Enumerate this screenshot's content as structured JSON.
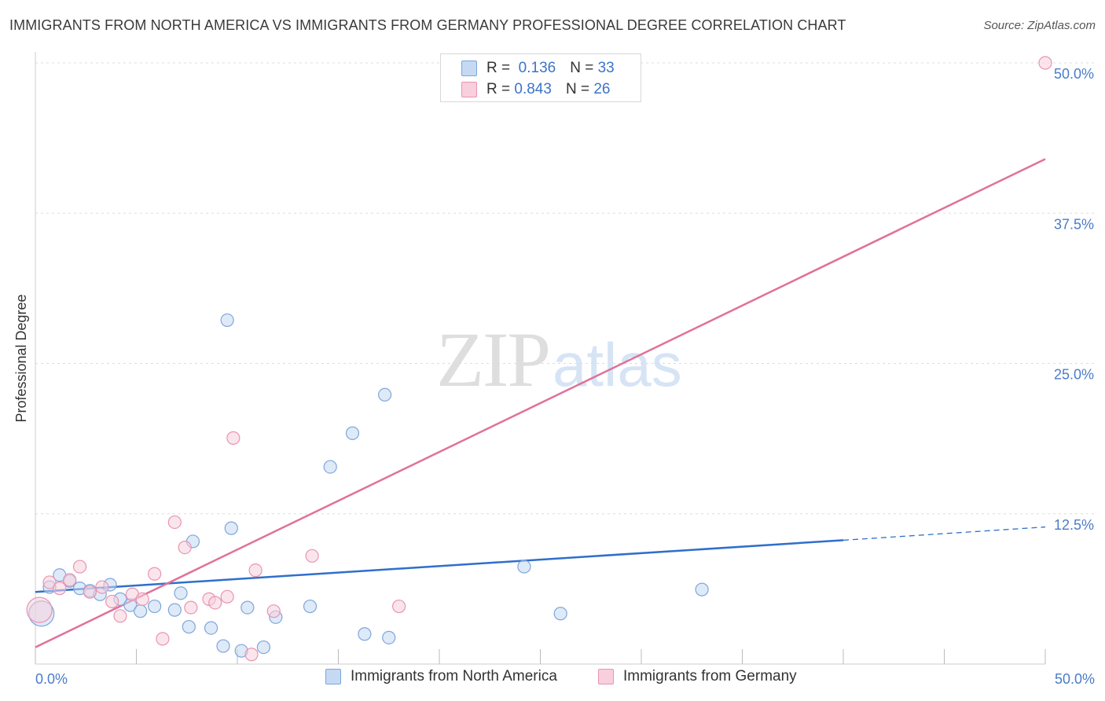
{
  "header": {
    "title": "IMMIGRANTS FROM NORTH AMERICA VS IMMIGRANTS FROM GERMANY PROFESSIONAL DEGREE CORRELATION CHART",
    "source": "Source: ZipAtlas.com"
  },
  "watermark": {
    "zip": "ZIP",
    "atlas": "atlas"
  },
  "legend": {
    "north_america": {
      "r_label": "R =",
      "r_value": "0.136",
      "n_label": "N =",
      "n_value": "33"
    },
    "germany": {
      "r_label": "R =",
      "r_value": "0.843",
      "n_label": "N =",
      "n_value": "26"
    }
  },
  "colors": {
    "north_america_fill": "#c5d9f3",
    "north_america_stroke": "#7ea6dc",
    "north_america_line": "#2f6fcc",
    "germany_fill": "#f8cfdc",
    "germany_stroke": "#e994b0",
    "germany_line": "#e0719a",
    "grid": "#dddddd",
    "tick_text": "#4a7cc9"
  },
  "chart_data": {
    "type": "scatter",
    "title": "IMMIGRANTS FROM NORTH AMERICA VS IMMIGRANTS FROM GERMANY PROFESSIONAL DEGREE CORRELATION CHART",
    "xlabel": "",
    "ylabel": "Professional Degree",
    "xlim": [
      0,
      50
    ],
    "ylim": [
      0,
      50
    ],
    "x_tick_labels": [
      "0.0%",
      "50.0%"
    ],
    "y_ticks": [
      {
        "value": 12.5,
        "label": "12.5%"
      },
      {
        "value": 25.0,
        "label": "25.0%"
      },
      {
        "value": 37.5,
        "label": "37.5%"
      },
      {
        "value": 50.0,
        "label": "50.0%"
      }
    ],
    "legend_position": "bottom",
    "series": [
      {
        "name": "Immigrants from North America",
        "points": [
          [
            0.3,
            4.2
          ],
          [
            0.7,
            6.4
          ],
          [
            1.2,
            7.4
          ],
          [
            1.7,
            6.9
          ],
          [
            2.2,
            6.3
          ],
          [
            2.7,
            6.1
          ],
          [
            3.2,
            5.8
          ],
          [
            3.7,
            6.6
          ],
          [
            4.2,
            5.4
          ],
          [
            4.7,
            4.9
          ],
          [
            5.2,
            4.4
          ],
          [
            5.9,
            4.8
          ],
          [
            6.9,
            4.5
          ],
          [
            7.2,
            5.9
          ],
          [
            7.6,
            3.1
          ],
          [
            7.8,
            10.2
          ],
          [
            8.7,
            3.0
          ],
          [
            9.3,
            1.5
          ],
          [
            9.5,
            28.6
          ],
          [
            9.7,
            11.3
          ],
          [
            10.2,
            1.1
          ],
          [
            10.5,
            4.7
          ],
          [
            11.3,
            1.4
          ],
          [
            11.9,
            3.9
          ],
          [
            13.6,
            4.8
          ],
          [
            14.6,
            16.4
          ],
          [
            15.7,
            19.2
          ],
          [
            16.3,
            2.5
          ],
          [
            17.3,
            22.4
          ],
          [
            17.5,
            2.2
          ],
          [
            24.2,
            8.1
          ],
          [
            26.0,
            4.2
          ],
          [
            33.0,
            6.2
          ]
        ],
        "trend": {
          "x0": 0,
          "y0": 6.0,
          "x1": 40,
          "y1": 10.3,
          "dash_to_x": 50,
          "dash_to_y": 11.4
        }
      },
      {
        "name": "Immigrants from Germany",
        "points": [
          [
            0.2,
            4.5
          ],
          [
            0.7,
            6.8
          ],
          [
            1.2,
            6.3
          ],
          [
            1.7,
            7.0
          ],
          [
            2.2,
            8.1
          ],
          [
            2.7,
            6.0
          ],
          [
            3.3,
            6.4
          ],
          [
            3.8,
            5.2
          ],
          [
            4.2,
            4.0
          ],
          [
            4.8,
            5.8
          ],
          [
            5.3,
            5.4
          ],
          [
            5.9,
            7.5
          ],
          [
            6.3,
            2.1
          ],
          [
            6.9,
            11.8
          ],
          [
            7.4,
            9.7
          ],
          [
            7.7,
            4.7
          ],
          [
            8.6,
            5.4
          ],
          [
            8.9,
            5.1
          ],
          [
            9.5,
            5.6
          ],
          [
            9.8,
            18.8
          ],
          [
            10.7,
            0.8
          ],
          [
            10.9,
            7.8
          ],
          [
            11.8,
            4.4
          ],
          [
            13.7,
            9.0
          ],
          [
            18.0,
            4.8
          ],
          [
            50.0,
            50.0
          ]
        ],
        "trend": {
          "x0": 0,
          "y0": 1.4,
          "x1": 50,
          "y1": 42.0
        }
      }
    ]
  }
}
